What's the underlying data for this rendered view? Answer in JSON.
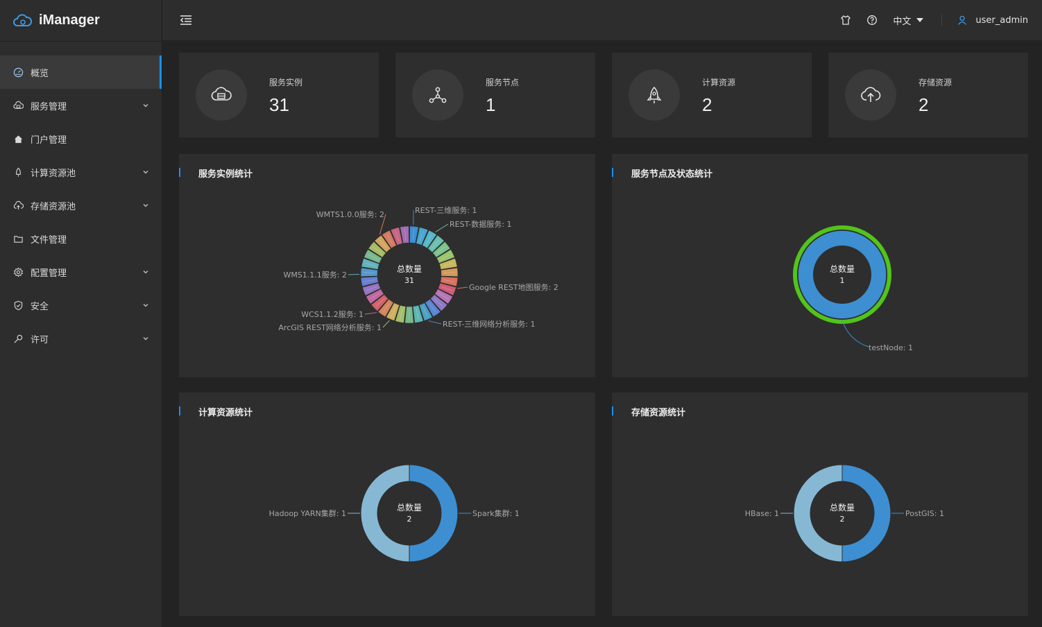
{
  "app": {
    "name": "iManager"
  },
  "header": {
    "language": "中文",
    "user": "user_admin"
  },
  "sidebar": {
    "items": [
      {
        "label": "概览",
        "icon": "dashboard-icon",
        "active": true,
        "expandable": false
      },
      {
        "label": "服务管理",
        "icon": "cloud-server-icon",
        "active": false,
        "expandable": true
      },
      {
        "label": "门户管理",
        "icon": "home-icon",
        "active": false,
        "expandable": false
      },
      {
        "label": "计算资源池",
        "icon": "rocket-icon",
        "active": false,
        "expandable": true
      },
      {
        "label": "存储资源池",
        "icon": "cloud-upload-icon",
        "active": false,
        "expandable": true
      },
      {
        "label": "文件管理",
        "icon": "folder-icon",
        "active": false,
        "expandable": false
      },
      {
        "label": "配置管理",
        "icon": "settings-icon",
        "active": false,
        "expandable": true
      },
      {
        "label": "安全",
        "icon": "shield-icon",
        "active": false,
        "expandable": true
      },
      {
        "label": "许可",
        "icon": "key-icon",
        "active": false,
        "expandable": true
      }
    ]
  },
  "stats": [
    {
      "label": "服务实例",
      "value": "31",
      "icon": "cloud-server-icon"
    },
    {
      "label": "服务节点",
      "value": "1",
      "icon": "nodes-icon"
    },
    {
      "label": "计算资源",
      "value": "2",
      "icon": "rocket-icon"
    },
    {
      "label": "存储资源",
      "value": "2",
      "icon": "cloud-upload-icon"
    }
  ],
  "panels": {
    "service_instances": {
      "title": "服务实例统计"
    },
    "service_nodes": {
      "title": "服务节点及状态统计"
    },
    "compute": {
      "title": "计算资源统计"
    },
    "storage": {
      "title": "存储资源统计"
    }
  },
  "colors": {
    "accent": "#1890ff",
    "blue": "#3d8fd1",
    "light_blue": "#86b8d4",
    "green": "#52c41a"
  },
  "chart_data": [
    {
      "id": "service_instances",
      "type": "pie",
      "title": "服务实例统计",
      "center_label": "总数量",
      "total": 31,
      "slices": [
        {
          "label": "REST-三维服务",
          "value": 1
        },
        {
          "label": "REST-数据服务",
          "value": 1
        },
        {
          "label": "Google REST地图服务",
          "value": 2
        },
        {
          "label": "REST-三维网络分析服务",
          "value": 1
        },
        {
          "label": "ArcGIS REST网络分析服务",
          "value": 1
        },
        {
          "label": "WCS1.1.2服务",
          "value": 1
        },
        {
          "label": "WMS1.1.1服务",
          "value": 2
        },
        {
          "label": "WMTS1.0.0服务",
          "value": 2
        }
      ]
    },
    {
      "id": "service_nodes",
      "type": "pie",
      "title": "服务节点及状态统计",
      "center_label": "总数量",
      "total": 1,
      "slices": [
        {
          "label": "testNode",
          "value": 1
        }
      ]
    },
    {
      "id": "compute",
      "type": "pie",
      "title": "计算资源统计",
      "center_label": "总数量",
      "total": 2,
      "slices": [
        {
          "label": "Spark集群",
          "value": 1
        },
        {
          "label": "Hadoop YARN集群",
          "value": 1
        }
      ]
    },
    {
      "id": "storage",
      "type": "pie",
      "title": "存储资源统计",
      "center_label": "总数量",
      "total": 2,
      "slices": [
        {
          "label": "PostGIS",
          "value": 1
        },
        {
          "label": "HBase",
          "value": 1
        }
      ]
    }
  ]
}
